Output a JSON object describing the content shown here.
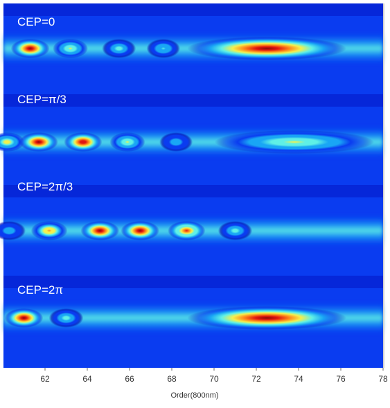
{
  "chart_data": {
    "type": "heatmap",
    "title": "",
    "xlabel": "Order(800nm)",
    "ylabel": "",
    "xlim": [
      60,
      78
    ],
    "x_ticks": [
      {
        "value": 62,
        "label": "62"
      },
      {
        "value": 64,
        "label": "64"
      },
      {
        "value": 66,
        "label": "66"
      },
      {
        "value": 68,
        "label": "68"
      },
      {
        "value": 70,
        "label": "70"
      },
      {
        "value": 72,
        "label": "72"
      },
      {
        "value": 74,
        "label": "74"
      },
      {
        "value": 76,
        "label": "76"
      },
      {
        "value": 78,
        "label": "78"
      }
    ],
    "colormap": [
      "#0000b0",
      "#0a3cf0",
      "#19a6f5",
      "#5ff0e6",
      "#f5f04c",
      "#ff8a1a",
      "#e01510",
      "#8a0a08"
    ],
    "panels": [
      {
        "label": "CEP=0",
        "spots": [
          {
            "order": 61.3,
            "intensity": 0.98
          },
          {
            "order": 63.2,
            "intensity": 0.55
          },
          {
            "order": 65.5,
            "intensity": 0.42
          },
          {
            "order": 67.6,
            "intensity": 0.38
          },
          {
            "order": 72.5,
            "intensity": 0.95
          }
        ]
      },
      {
        "label": "CEP=π/3",
        "spots": [
          {
            "order": 60.2,
            "intensity": 0.6
          },
          {
            "order": 61.7,
            "intensity": 1.0
          },
          {
            "order": 63.8,
            "intensity": 0.92
          },
          {
            "order": 65.9,
            "intensity": 0.58
          },
          {
            "order": 68.2,
            "intensity": 0.33
          },
          {
            "order": 73.8,
            "intensity": 0.5
          }
        ]
      },
      {
        "label": "CEP=2π/3",
        "spots": [
          {
            "order": 60.3,
            "intensity": 0.32
          },
          {
            "order": 62.2,
            "intensity": 0.72
          },
          {
            "order": 64.6,
            "intensity": 0.98
          },
          {
            "order": 66.5,
            "intensity": 0.96
          },
          {
            "order": 68.7,
            "intensity": 0.85
          },
          {
            "order": 71.0,
            "intensity": 0.45
          }
        ]
      },
      {
        "label": "CEP=2π",
        "spots": [
          {
            "order": 61.0,
            "intensity": 0.96
          },
          {
            "order": 63.0,
            "intensity": 0.48
          },
          {
            "order": 72.5,
            "intensity": 0.95
          }
        ]
      }
    ]
  }
}
